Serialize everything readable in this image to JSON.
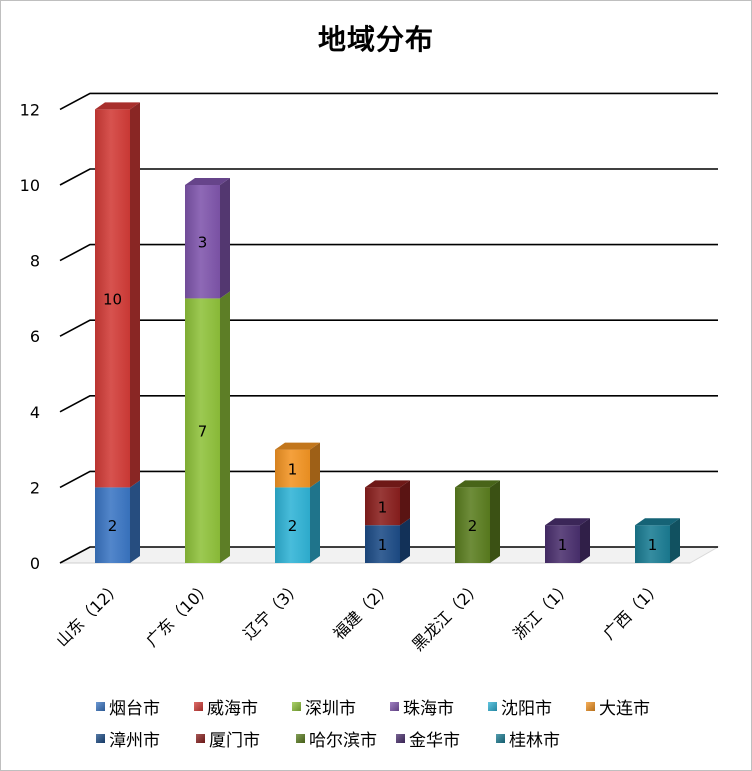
{
  "chart_data": {
    "type": "bar",
    "stacked": true,
    "title": "地域分布",
    "xlabel": "",
    "ylabel": "",
    "ylim": [
      0,
      12
    ],
    "yticks": [
      0,
      2,
      4,
      6,
      8,
      10,
      12
    ],
    "grid": true,
    "legend": "bottom",
    "categories": [
      "山东（12）",
      "广东（10）",
      "辽宁（3）",
      "福建（2）",
      "黑龙江（2）",
      "浙江（1）",
      "广西（1）"
    ],
    "series": [
      {
        "name": "烟台市",
        "color": "#3a76c4",
        "values": [
          2,
          0,
          0,
          0,
          0,
          0,
          0
        ]
      },
      {
        "name": "威海市",
        "color": "#d23b37",
        "values": [
          10,
          0,
          0,
          0,
          0,
          0,
          0
        ]
      },
      {
        "name": "深圳市",
        "color": "#8fc23a",
        "values": [
          0,
          7,
          0,
          0,
          0,
          0,
          0
        ]
      },
      {
        "name": "珠海市",
        "color": "#7f55ac",
        "values": [
          0,
          3,
          0,
          0,
          0,
          0,
          0
        ]
      },
      {
        "name": "沈阳市",
        "color": "#2fb3d6",
        "values": [
          0,
          0,
          2,
          0,
          0,
          0,
          0
        ]
      },
      {
        "name": "大连市",
        "color": "#f39423",
        "values": [
          0,
          0,
          1,
          0,
          0,
          0,
          0
        ]
      },
      {
        "name": "漳州市",
        "color": "#1c4c87",
        "values": [
          0,
          0,
          0,
          1,
          0,
          0,
          0
        ]
      },
      {
        "name": "厦门市",
        "color": "#8a1f1d",
        "values": [
          0,
          0,
          0,
          1,
          0,
          0,
          0
        ]
      },
      {
        "name": "哈尔滨市",
        "color": "#5a7d1f",
        "values": [
          0,
          0,
          0,
          0,
          2,
          0,
          0
        ]
      },
      {
        "name": "金华市",
        "color": "#4a2f6e",
        "values": [
          0,
          0,
          0,
          0,
          0,
          1,
          0
        ]
      },
      {
        "name": "桂林市",
        "color": "#1a7c93",
        "values": [
          0,
          0,
          0,
          0,
          0,
          0,
          1
        ]
      }
    ]
  }
}
